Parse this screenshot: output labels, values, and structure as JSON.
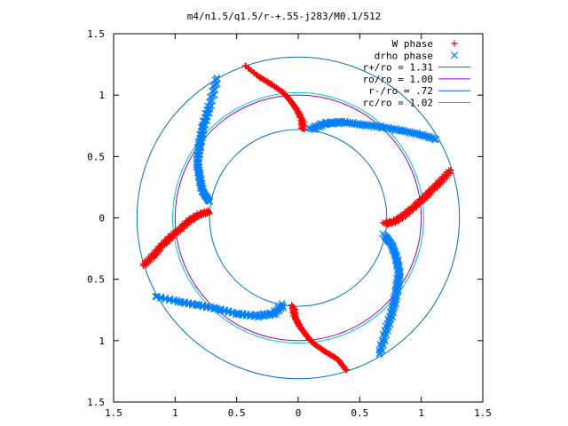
{
  "chart_data": {
    "type": "scatter",
    "title": "m4/n1.5/q1.5/r-+.55-j283/M0.1/512",
    "xlabel": "",
    "ylabel": "",
    "xlim": [
      -1.5,
      1.5
    ],
    "ylim": [
      -1.5,
      1.5
    ],
    "x_ticks": [
      -1.5,
      -1,
      -0.5,
      0,
      0.5,
      1,
      1.5
    ],
    "y_ticks": [
      1.5,
      1,
      0.5,
      0,
      -0.5,
      -1,
      -1.5
    ],
    "x_tick_labels": [
      "1.5",
      "1",
      "0.5",
      "0",
      "0.5",
      "1",
      "1.5"
    ],
    "y_tick_labels": [
      "1.5",
      "1",
      "0.5",
      "0",
      "0.5",
      "1",
      "1.5"
    ],
    "grid": false,
    "legend_position": "top-right",
    "series": [
      {
        "name": "W phase",
        "kind": "points",
        "marker": "plus",
        "color": "#ff0000",
        "arms": [
          [
            [
              0.04,
              0.72
            ],
            [
              0.03,
              0.8
            ],
            [
              -0.01,
              0.88
            ],
            [
              -0.06,
              0.95
            ],
            [
              -0.12,
              1.02
            ],
            [
              -0.22,
              1.09
            ],
            [
              -0.32,
              1.15
            ],
            [
              -0.43,
              1.24
            ]
          ],
          [
            [
              0.7,
              -0.05
            ],
            [
              0.78,
              -0.03
            ],
            [
              0.86,
              0.02
            ],
            [
              0.94,
              0.09
            ],
            [
              1.02,
              0.16
            ],
            [
              1.09,
              0.23
            ],
            [
              1.16,
              0.3
            ],
            [
              1.24,
              0.39
            ]
          ],
          [
            [
              -0.04,
              -0.72
            ],
            [
              -0.03,
              -0.8
            ],
            [
              0.01,
              -0.88
            ],
            [
              0.06,
              -0.95
            ],
            [
              0.12,
              -1.02
            ],
            [
              0.22,
              -1.09
            ],
            [
              0.32,
              -1.15
            ],
            [
              0.39,
              -1.24
            ]
          ],
          [
            [
              -0.72,
              0.05
            ],
            [
              -0.8,
              0.03
            ],
            [
              -0.88,
              -0.02
            ],
            [
              -0.96,
              -0.09
            ],
            [
              -1.04,
              -0.16
            ],
            [
              -1.11,
              -0.23
            ],
            [
              -1.18,
              -0.31
            ],
            [
              -1.26,
              -0.39
            ]
          ]
        ]
      },
      {
        "name": "drho phase",
        "kind": "points",
        "marker": "cross",
        "color": "#0080ff",
        "arms": [
          [
            [
              0.1,
              0.72
            ],
            [
              0.22,
              0.77
            ],
            [
              0.36,
              0.78
            ],
            [
              0.52,
              0.76
            ],
            [
              0.68,
              0.74
            ],
            [
              0.84,
              0.71
            ],
            [
              0.99,
              0.68
            ],
            [
              1.12,
              0.64
            ]
          ],
          [
            [
              0.7,
              -0.14
            ],
            [
              0.76,
              -0.22
            ],
            [
              0.8,
              -0.33
            ],
            [
              0.82,
              -0.45
            ],
            [
              0.8,
              -0.6
            ],
            [
              0.77,
              -0.75
            ],
            [
              0.72,
              -0.9
            ],
            [
              0.66,
              -1.11
            ]
          ],
          [
            [
              -0.12,
              -0.71
            ],
            [
              -0.2,
              -0.78
            ],
            [
              -0.34,
              -0.8
            ],
            [
              -0.5,
              -0.78
            ],
            [
              -0.66,
              -0.74
            ],
            [
              -0.82,
              -0.71
            ],
            [
              -0.98,
              -0.68
            ],
            [
              -1.16,
              -0.64
            ]
          ],
          [
            [
              -0.72,
              0.13
            ],
            [
              -0.78,
              0.22
            ],
            [
              -0.8,
              0.33
            ],
            [
              -0.82,
              0.45
            ],
            [
              -0.8,
              0.6
            ],
            [
              -0.77,
              0.75
            ],
            [
              -0.72,
              0.91
            ],
            [
              -0.66,
              1.14
            ]
          ]
        ]
      },
      {
        "name": "r+/ro = 1.31",
        "kind": "circle",
        "radius": 1.31,
        "color": "#0072bd"
      },
      {
        "name": "ro/ro = 1.00",
        "kind": "circle",
        "radius": 1.0,
        "color": "#9400d3"
      },
      {
        "name": "r-/ro = .72",
        "kind": "circle",
        "radius": 0.72,
        "color": "#0072bd"
      },
      {
        "name": "rc/ro = 1.02",
        "kind": "circle",
        "radius": 1.02,
        "color": "#00c8c8"
      }
    ]
  }
}
